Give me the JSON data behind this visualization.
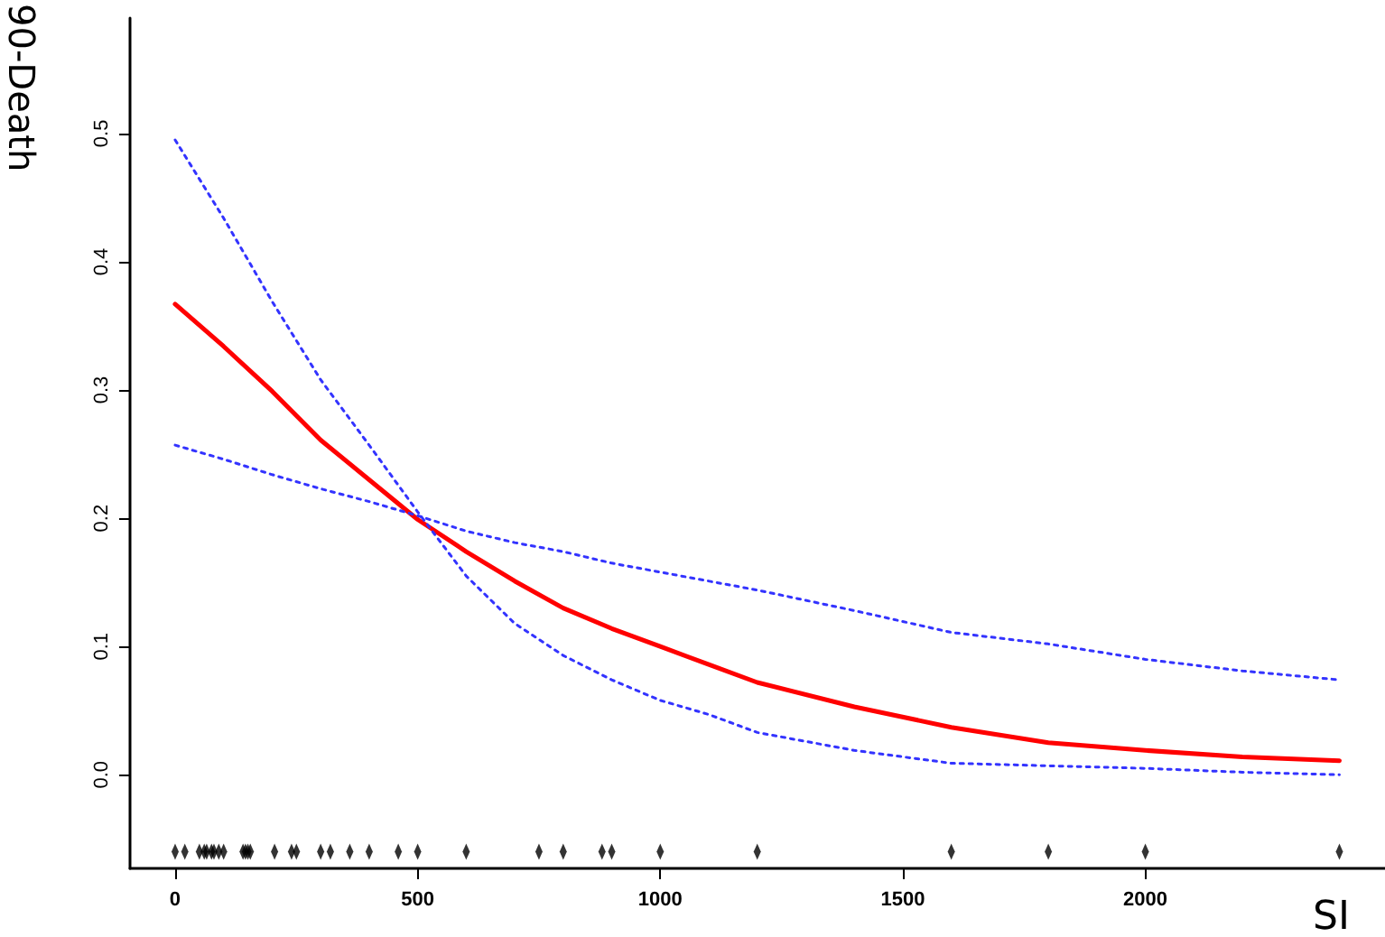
{
  "chart_data": {
    "type": "line",
    "xlabel": "SI",
    "ylabel": "90-Death",
    "xlim": [
      -93,
      2494
    ],
    "ylim": [
      -0.073,
      0.59
    ],
    "xticks": [
      0,
      500,
      1000,
      1500,
      2000
    ],
    "yticks": [
      {
        "value": 0,
        "label": "0.0"
      },
      {
        "value": 0.1,
        "label": "0.1"
      },
      {
        "value": 0.2,
        "label": "0.2"
      },
      {
        "value": 0.3,
        "label": "0.3"
      },
      {
        "value": 0.4,
        "label": "0.4"
      },
      {
        "value": 0.5,
        "label": "0.5"
      }
    ],
    "grid": false,
    "series": [
      {
        "type": "line",
        "color": "#ff0000",
        "line_style": "solid",
        "x": [
          0,
          100,
          200,
          300,
          400,
          500,
          600,
          700,
          800,
          900,
          1000,
          1100,
          1200,
          1400,
          1600,
          1800,
          2000,
          2200,
          2400
        ],
        "values": [
          0.367,
          0.334,
          0.299,
          0.261,
          0.23,
          0.199,
          0.174,
          0.151,
          0.13,
          0.114,
          0.1,
          0.086,
          0.072,
          0.053,
          0.037,
          0.025,
          0.019,
          0.014,
          0.011
        ]
      },
      {
        "type": "line",
        "color": "#3333ff",
        "line_style": "dotted",
        "x": [
          0,
          100,
          200,
          300,
          400,
          500,
          600,
          700,
          800,
          900,
          1000,
          1100,
          1200,
          1400,
          1600,
          1800,
          2000,
          2200,
          2400
        ],
        "values": [
          0.495,
          0.434,
          0.369,
          0.308,
          0.257,
          0.205,
          0.155,
          0.118,
          0.093,
          0.074,
          0.058,
          0.047,
          0.033,
          0.019,
          0.009,
          0.007,
          0.005,
          0.002,
          0.0
        ]
      },
      {
        "type": "line",
        "color": "#3333ff",
        "line_style": "dotted",
        "x": [
          0,
          100,
          200,
          300,
          400,
          500,
          600,
          700,
          800,
          900,
          1000,
          1200,
          1400,
          1600,
          1800,
          2000,
          2200,
          2400
        ],
        "values": [
          0.257,
          0.246,
          0.234,
          0.223,
          0.213,
          0.202,
          0.19,
          0.181,
          0.174,
          0.165,
          0.158,
          0.144,
          0.128,
          0.111,
          0.102,
          0.09,
          0.081,
          0.074
        ]
      },
      {
        "type": "scatter",
        "color": "#000000",
        "marker": "diamond",
        "x": [
          0,
          20,
          50,
          60,
          65,
          75,
          80,
          90,
          100,
          140,
          145,
          150,
          155,
          205,
          240,
          250,
          300,
          320,
          360,
          400,
          460,
          500,
          600,
          750,
          800,
          880,
          900,
          1000,
          1200,
          1600,
          1800,
          2000,
          2400
        ],
        "values": [
          -0.06,
          -0.06,
          -0.06,
          -0.06,
          -0.06,
          -0.06,
          -0.06,
          -0.06,
          -0.06,
          -0.06,
          -0.06,
          -0.06,
          -0.06,
          -0.06,
          -0.06,
          -0.06,
          -0.06,
          -0.06,
          -0.06,
          -0.06,
          -0.06,
          -0.06,
          -0.06,
          -0.06,
          -0.06,
          -0.06,
          -0.06,
          -0.06,
          -0.06,
          -0.06,
          -0.06,
          -0.06,
          -0.06
        ]
      }
    ]
  }
}
